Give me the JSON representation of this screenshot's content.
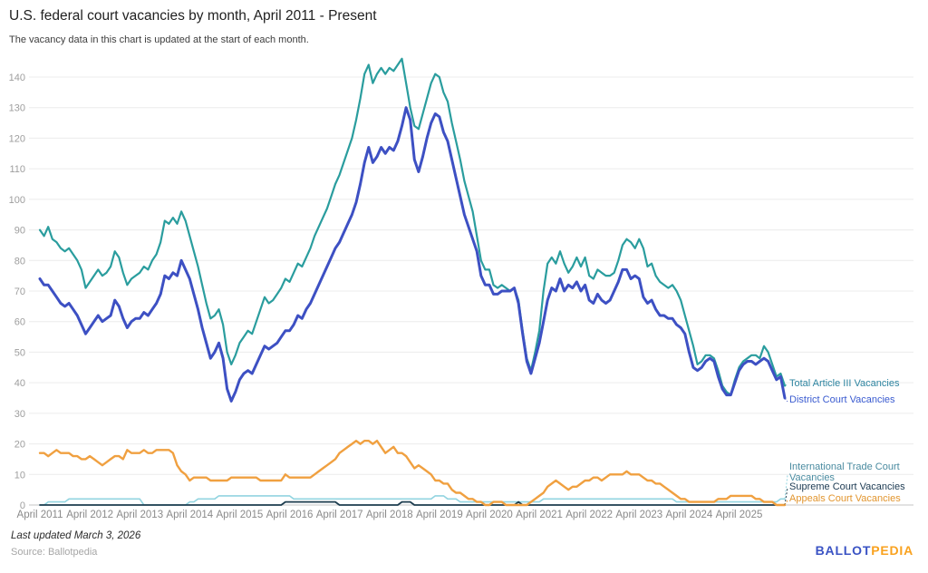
{
  "header": {
    "title": "U.S. federal court vacancies by month, April 2011 - Present",
    "subtitle": "The vacancy data in this chart is updated at the start of each month."
  },
  "footer": {
    "last_updated": "Last updated March 3, 2026",
    "source": "Source: Ballotpedia",
    "logo_part1": "BALLOT",
    "logo_part2": "PEDIA",
    "logo_color1": "#3a53c4",
    "logo_color2": "#f9a21f"
  },
  "chart_data": {
    "type": "line",
    "title": "U.S. federal court vacancies by month, April 2011 - Present",
    "x_start": "April 2011",
    "x_end": "March 2026",
    "points_per_month": 1,
    "x_tick_labels": [
      "April 2011",
      "April 2012",
      "April 2013",
      "April 2014",
      "April 2015",
      "April 2016",
      "April 2017",
      "April 2018",
      "April 2019",
      "April 2020",
      "April 2021",
      "April 2022",
      "April 2023",
      "April 2024",
      "April 2025"
    ],
    "x_tick_month_indices": [
      0,
      12,
      24,
      36,
      48,
      60,
      72,
      84,
      96,
      108,
      120,
      132,
      144,
      156,
      168
    ],
    "ylim": [
      0,
      145
    ],
    "y_ticks": [
      0,
      10,
      20,
      30,
      40,
      50,
      60,
      70,
      80,
      90,
      100,
      110,
      120,
      130,
      140
    ],
    "grid": true,
    "grid_color": "#ececec",
    "axis_label_color": "#9e9e9e",
    "x_label_color": "#8a8a8a",
    "legend_position": "right-of-line-ends",
    "series": [
      {
        "name": "Total Article III Vacancies",
        "color": "#2a9d9e",
        "label_color": "#2d84a0",
        "width": 2.2,
        "values": [
          90,
          88,
          91,
          87,
          86,
          84,
          83,
          84,
          82,
          80,
          77,
          71,
          73,
          75,
          77,
          75,
          76,
          78,
          83,
          81,
          76,
          72,
          74,
          75,
          76,
          78,
          77,
          80,
          82,
          86,
          93,
          92,
          94,
          92,
          96,
          93,
          88,
          83,
          78,
          72,
          66,
          61,
          62,
          64,
          59,
          50,
          46,
          49,
          53,
          55,
          57,
          56,
          60,
          64,
          68,
          66,
          67,
          69,
          71,
          74,
          73,
          76,
          79,
          78,
          81,
          84,
          88,
          91,
          94,
          97,
          101,
          105,
          108,
          112,
          116,
          120,
          126,
          133,
          141,
          144,
          138,
          141,
          143,
          141,
          143,
          142,
          144,
          146,
          138,
          130,
          124,
          123,
          128,
          133,
          138,
          141,
          140,
          135,
          132,
          125,
          119,
          113,
          106,
          101,
          96,
          88,
          80,
          77,
          77,
          72,
          71,
          72,
          71,
          70,
          71,
          67,
          57,
          48,
          44,
          50,
          57,
          70,
          79,
          81,
          79,
          83,
          79,
          76,
          78,
          81,
          78,
          81,
          75,
          74,
          77,
          76,
          75,
          75,
          76,
          80,
          85,
          87,
          86,
          84,
          87,
          84,
          78,
          79,
          75,
          73,
          72,
          71,
          72,
          70,
          67,
          62,
          57,
          52,
          46,
          47,
          49,
          49,
          48,
          44,
          39,
          37,
          36,
          41,
          45,
          47,
          48,
          49,
          49,
          48,
          52,
          50,
          46,
          42,
          43,
          39
        ]
      },
      {
        "name": "District Court Vacancies",
        "color": "#3d50c3",
        "label_color": "#3a5bd0",
        "width": 3,
        "values": [
          74,
          72,
          72,
          70,
          68,
          66,
          65,
          66,
          64,
          62,
          59,
          56,
          58,
          60,
          62,
          60,
          61,
          62,
          67,
          65,
          61,
          58,
          60,
          61,
          61,
          63,
          62,
          64,
          66,
          69,
          75,
          74,
          76,
          75,
          80,
          77,
          74,
          69,
          64,
          58,
          53,
          48,
          50,
          53,
          48,
          38,
          34,
          37,
          41,
          43,
          44,
          43,
          46,
          49,
          52,
          51,
          52,
          53,
          55,
          57,
          57,
          59,
          62,
          61,
          64,
          66,
          69,
          72,
          75,
          78,
          81,
          84,
          86,
          89,
          92,
          95,
          99,
          105,
          112,
          117,
          112,
          114,
          117,
          115,
          117,
          116,
          119,
          124,
          130,
          126,
          113,
          109,
          114,
          120,
          125,
          128,
          127,
          122,
          119,
          113,
          107,
          101,
          95,
          91,
          87,
          83,
          75,
          72,
          72,
          69,
          69,
          70,
          70,
          70,
          71,
          66,
          56,
          47,
          43,
          48,
          53,
          60,
          67,
          71,
          70,
          74,
          70,
          72,
          71,
          73,
          70,
          72,
          67,
          66,
          69,
          67,
          66,
          67,
          70,
          73,
          77,
          77,
          74,
          75,
          74,
          68,
          66,
          67,
          64,
          62,
          62,
          61,
          61,
          59,
          58,
          56,
          50,
          45,
          44,
          45,
          47,
          48,
          47,
          42,
          38,
          36,
          36,
          40,
          44,
          46,
          47,
          47,
          46,
          47,
          48,
          47,
          44,
          41,
          42,
          35
        ]
      },
      {
        "name": "International Trade Court Vacancies",
        "color": "#92d4e0",
        "label_color": "#4a8ba0",
        "width": 1.6,
        "values": [
          0,
          0,
          1,
          1,
          1,
          1,
          1,
          2,
          2,
          2,
          2,
          2,
          2,
          2,
          2,
          2,
          2,
          2,
          2,
          2,
          2,
          2,
          2,
          2,
          2,
          0,
          0,
          0,
          0,
          0,
          0,
          0,
          0,
          0,
          0,
          0,
          1,
          1,
          2,
          2,
          2,
          2,
          2,
          3,
          3,
          3,
          3,
          3,
          3,
          3,
          3,
          3,
          3,
          3,
          3,
          3,
          3,
          3,
          3,
          3,
          3,
          2,
          2,
          2,
          2,
          2,
          2,
          2,
          2,
          2,
          2,
          2,
          2,
          2,
          2,
          2,
          2,
          2,
          2,
          2,
          2,
          2,
          2,
          2,
          2,
          2,
          2,
          2,
          2,
          2,
          2,
          2,
          2,
          2,
          2,
          3,
          3,
          3,
          2,
          2,
          2,
          1,
          1,
          1,
          1,
          1,
          1,
          1,
          1,
          1,
          1,
          1,
          1,
          1,
          1,
          1,
          1,
          1,
          1,
          1,
          1,
          2,
          2,
          2,
          2,
          2,
          2,
          2,
          2,
          2,
          2,
          2,
          2,
          2,
          2,
          2,
          2,
          2,
          2,
          2,
          2,
          2,
          2,
          2,
          2,
          2,
          2,
          2,
          2,
          2,
          2,
          2,
          2,
          1,
          1,
          1,
          1,
          1,
          1,
          1,
          1,
          1,
          1,
          1,
          1,
          1,
          1,
          1,
          1,
          1,
          1,
          1,
          1,
          1,
          1,
          1,
          1,
          1,
          2,
          2
        ]
      },
      {
        "name": "Supreme Court Vacancies",
        "color": "#1d3d4f",
        "label_color": "#1c3a52",
        "width": 1.8,
        "values": [
          0,
          0,
          0,
          0,
          0,
          0,
          0,
          0,
          0,
          0,
          0,
          0,
          0,
          0,
          0,
          0,
          0,
          0,
          0,
          0,
          0,
          0,
          0,
          0,
          0,
          0,
          0,
          0,
          0,
          0,
          0,
          0,
          0,
          0,
          0,
          0,
          0,
          0,
          0,
          0,
          0,
          0,
          0,
          0,
          0,
          0,
          0,
          0,
          0,
          0,
          0,
          0,
          0,
          0,
          0,
          0,
          0,
          0,
          0,
          1,
          1,
          1,
          1,
          1,
          1,
          1,
          1,
          1,
          1,
          1,
          1,
          1,
          0,
          0,
          0,
          0,
          0,
          0,
          0,
          0,
          0,
          0,
          0,
          0,
          0,
          0,
          0,
          1,
          1,
          1,
          0,
          0,
          0,
          0,
          0,
          0,
          0,
          0,
          0,
          0,
          0,
          0,
          0,
          0,
          0,
          0,
          0,
          0,
          0,
          0,
          0,
          0,
          0,
          0,
          0,
          1,
          0,
          0,
          0,
          0,
          0,
          0,
          0,
          0,
          0,
          0,
          0,
          0,
          0,
          0,
          0,
          0,
          0,
          0,
          0,
          0,
          0,
          0,
          0,
          0,
          0,
          0,
          0,
          0,
          0,
          0,
          0,
          0,
          0,
          0,
          0,
          0,
          0,
          0,
          0,
          0,
          0,
          0,
          0,
          0,
          0,
          0,
          0,
          0,
          0,
          0,
          0,
          0,
          0,
          0,
          0,
          0,
          0,
          0,
          0,
          0,
          0,
          0,
          0,
          0
        ]
      },
      {
        "name": "Appeals Court Vacancies",
        "color": "#f0a040",
        "label_color": "#e2952e",
        "width": 2.4,
        "values": [
          17,
          17,
          16,
          17,
          18,
          17,
          17,
          17,
          16,
          16,
          15,
          15,
          16,
          15,
          14,
          13,
          14,
          15,
          16,
          16,
          15,
          18,
          17,
          17,
          17,
          18,
          17,
          17,
          18,
          18,
          18,
          18,
          17,
          13,
          11,
          10,
          8,
          9,
          9,
          9,
          9,
          8,
          8,
          8,
          8,
          8,
          9,
          9,
          9,
          9,
          9,
          9,
          9,
          8,
          8,
          8,
          8,
          8,
          8,
          10,
          9,
          9,
          9,
          9,
          9,
          9,
          10,
          11,
          12,
          13,
          14,
          15,
          17,
          18,
          19,
          20,
          21,
          20,
          21,
          21,
          20,
          21,
          19,
          17,
          18,
          19,
          17,
          17,
          16,
          14,
          12,
          13,
          12,
          11,
          10,
          8,
          8,
          7,
          7,
          5,
          4,
          4,
          3,
          2,
          2,
          1,
          1,
          0,
          0,
          1,
          1,
          1,
          0,
          0,
          0,
          0,
          0,
          0,
          1,
          2,
          3,
          4,
          6,
          7,
          8,
          7,
          6,
          5,
          6,
          6,
          7,
          8,
          8,
          9,
          9,
          8,
          9,
          10,
          10,
          10,
          10,
          11,
          10,
          10,
          10,
          9,
          8,
          8,
          7,
          7,
          6,
          5,
          4,
          3,
          2,
          2,
          1,
          1,
          1,
          1,
          1,
          1,
          1,
          2,
          2,
          2,
          3,
          3,
          3,
          3,
          3,
          3,
          2,
          2,
          1,
          1,
          1,
          0,
          0,
          0
        ]
      }
    ]
  }
}
